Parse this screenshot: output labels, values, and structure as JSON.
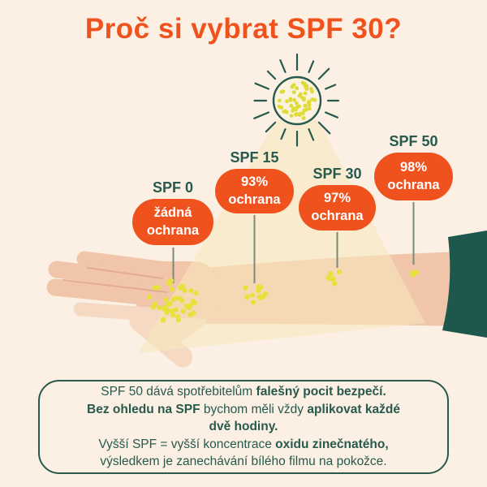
{
  "title": "Proč si vybrat SPF 30?",
  "spf_levels": [
    {
      "label": "SPF 0",
      "protection_line1": "žádná",
      "protection_line2": "ochrana",
      "uv_dot_count": 44
    },
    {
      "label": "SPF 15",
      "protection_line1": "93%",
      "protection_line2": "ochrana",
      "uv_dot_count": 12
    },
    {
      "label": "SPF 30",
      "protection_line1": "97%",
      "protection_line2": "ochrana",
      "uv_dot_count": 6
    },
    {
      "label": "SPF 50",
      "protection_line1": "98%",
      "protection_line2": "ochrana",
      "uv_dot_count": 3
    }
  ],
  "sun": {
    "dot_count": 58,
    "ray_count": 16
  },
  "footer_lines": [
    [
      {
        "t": "SPF 50 dává spotřebitelům ",
        "b": false
      },
      {
        "t": "falešný pocit bezpečí.",
        "b": true
      }
    ],
    [
      {
        "t": "Bez ohledu na SPF ",
        "b": true
      },
      {
        "t": "bychom měli vždy ",
        "b": false
      },
      {
        "t": "aplikovat každé",
        "b": true
      }
    ],
    [
      {
        "t": "dvě hodiny.",
        "b": true
      }
    ],
    [
      {
        "t": "Vyšší SPF = vyšší koncentrace ",
        "b": false
      },
      {
        "t": "oxidu zinečnatého,",
        "b": true
      }
    ],
    [
      {
        "t": "výsledkem je zanechávání bílého filmu na pokožce.",
        "b": false
      }
    ]
  ],
  "colors": {
    "background": "#FBF0E3",
    "accent_orange": "#F0521E",
    "teal": "#27594D",
    "skin": "#F0C5A9",
    "skin_light": "#F6D9C3",
    "sleeve": "#1E574C",
    "uv_dot": "#E7E13C",
    "sun_dot": "#DFDC3A",
    "sun_fill": "#FBF2E0",
    "beam": "rgba(247,233,190,0.55)",
    "connector": "#7B887C",
    "finger_line": "#E3AC8F"
  }
}
